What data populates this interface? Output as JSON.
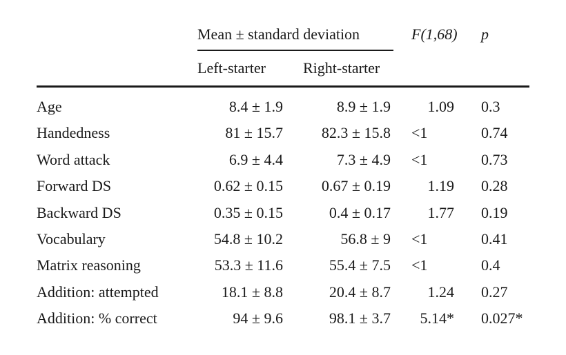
{
  "header": {
    "group_label": "Mean ± standard deviation",
    "f_label": "F(1,68)",
    "p_label": "p",
    "left_label": "Left-starter",
    "right_label": "Right-starter"
  },
  "rows": [
    {
      "label": "Age",
      "left": "8.4 ± 1.9",
      "right": "8.9 ± 1.9",
      "f": "1.09",
      "p": "0.3"
    },
    {
      "label": "Handedness",
      "left": "81 ± 15.7",
      "right": "82.3 ± 15.8",
      "f": "<1",
      "p": "0.74"
    },
    {
      "label": "Word attack",
      "left": "6.9 ± 4.4",
      "right": "7.3 ± 4.9",
      "f": "<1",
      "p": "0.73"
    },
    {
      "label": "Forward DS",
      "left": "0.62 ± 0.15",
      "right": "0.67 ± 0.19",
      "f": "1.19",
      "p": "0.28"
    },
    {
      "label": "Backward DS",
      "left": "0.35 ± 0.15",
      "right": "0.4 ± 0.17",
      "f": "1.77",
      "p": "0.19"
    },
    {
      "label": "Vocabulary",
      "left": "54.8 ± 10.2",
      "right": "56.8 ± 9",
      "f": "<1",
      "p": "0.41"
    },
    {
      "label": "Matrix reasoning",
      "left": "53.3 ± 11.6",
      "right": "55.4 ± 7.5",
      "f": "<1",
      "p": "0.4"
    },
    {
      "label": "Addition: attempted",
      "left": "18.1 ± 8.8",
      "right": "20.4 ± 8.7",
      "f": "1.24",
      "p": "0.27"
    },
    {
      "label": "Addition: % correct",
      "left": "94 ± 9.6",
      "right": "98.1 ± 3.7",
      "f": "5.14*",
      "p": "0.027*"
    }
  ]
}
